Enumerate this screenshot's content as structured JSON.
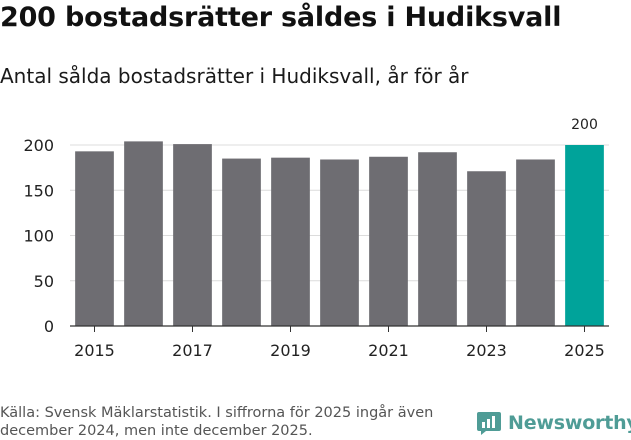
{
  "header": {
    "title": "200 bostadsrätter såldes i Hudiksvall",
    "subtitle": "Antal sålda bostadsrätter i Hudiksvall, år för år"
  },
  "chart_data": {
    "type": "bar",
    "categories": [
      "2015",
      "2016",
      "2017",
      "2018",
      "2019",
      "2020",
      "2021",
      "2022",
      "2023",
      "2024",
      "2025"
    ],
    "values": [
      193,
      204,
      201,
      185,
      186,
      184,
      187,
      192,
      171,
      184,
      200
    ],
    "x_tick_labels": [
      "2015",
      "2017",
      "2019",
      "2021",
      "2023",
      "2025"
    ],
    "y_ticks": [
      0,
      50,
      100,
      150,
      200
    ],
    "ylim": [
      0,
      215
    ],
    "grid": true,
    "highlight_index": 10,
    "highlight_label": "200",
    "colors": {
      "bar": "#6e6d72",
      "highlight": "#00a39a",
      "grid": "#dcdcdc",
      "axis": "#333333"
    }
  },
  "footer": {
    "source": "Källa: Svensk Mäklarstatistik. I siffrorna för 2025 ingår även december 2024, men inte december 2025.",
    "brand": "Newsworthy",
    "brand_icon": "newsworthy-logo-icon",
    "brand_color": "#4f9c96"
  }
}
